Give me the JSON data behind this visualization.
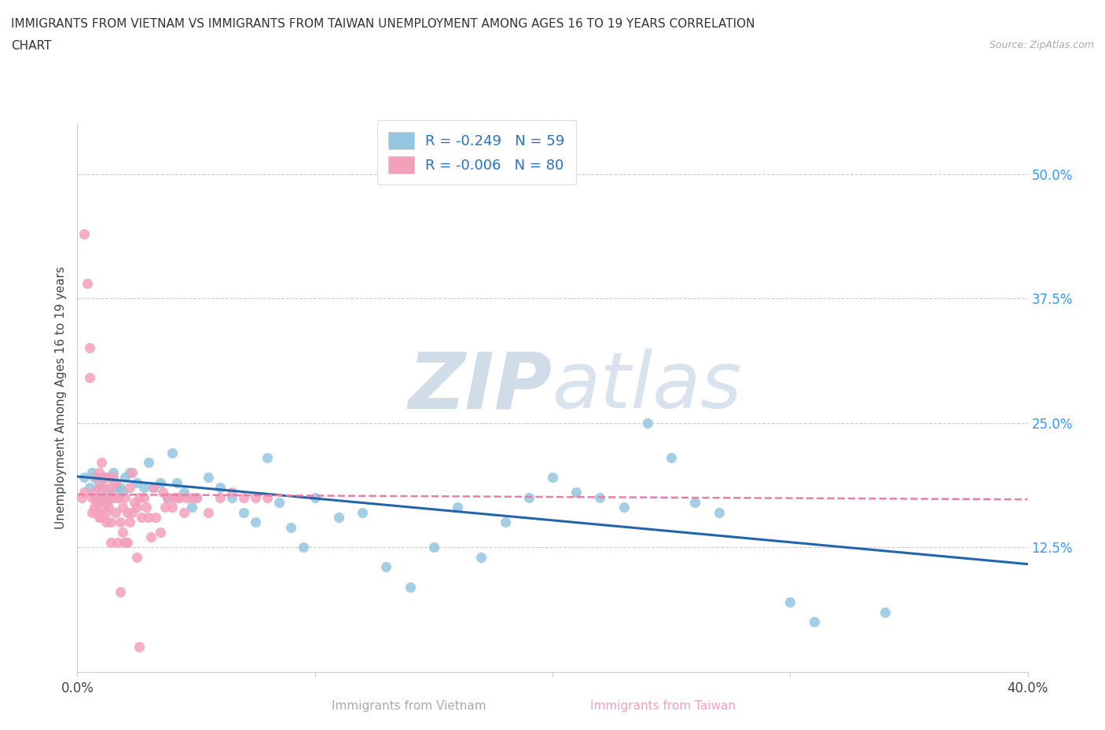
{
  "title_line1": "IMMIGRANTS FROM VIETNAM VS IMMIGRANTS FROM TAIWAN UNEMPLOYMENT AMONG AGES 16 TO 19 YEARS CORRELATION",
  "title_line2": "CHART",
  "source_text": "Source: ZipAtlas.com",
  "ylabel": "Unemployment Among Ages 16 to 19 years",
  "xlabel_vietnam": "Immigrants from Vietnam",
  "xlabel_taiwan": "Immigrants from Taiwan",
  "xlim": [
    0.0,
    0.4
  ],
  "ylim": [
    0.0,
    0.55
  ],
  "xticks": [
    0.0,
    0.1,
    0.2,
    0.3,
    0.4
  ],
  "xticklabels": [
    "0.0%",
    "",
    "",
    "",
    "40.0%"
  ],
  "ytick_positions": [
    0.125,
    0.25,
    0.375,
    0.5
  ],
  "ytick_labels": [
    "12.5%",
    "25.0%",
    "37.5%",
    "50.0%"
  ],
  "legend_vietnam_R": "R = -0.249",
  "legend_vietnam_N": "N = 59",
  "legend_taiwan_R": "R = -0.006",
  "legend_taiwan_N": "N = 80",
  "vietnam_color": "#93c6e0",
  "taiwan_color": "#f4a0bb",
  "trendline_vietnam_color": "#2166ac",
  "trendline_taiwan_color": "#e87fa8",
  "watermark_ZIP": "ZIP",
  "watermark_atlas": "atlas",
  "vietnam_scatter": [
    [
      0.003,
      0.195
    ],
    [
      0.005,
      0.185
    ],
    [
      0.006,
      0.2
    ],
    [
      0.007,
      0.195
    ],
    [
      0.008,
      0.175
    ],
    [
      0.009,
      0.19
    ],
    [
      0.01,
      0.185
    ],
    [
      0.011,
      0.175
    ],
    [
      0.012,
      0.195
    ],
    [
      0.013,
      0.18
    ],
    [
      0.014,
      0.175
    ],
    [
      0.015,
      0.2
    ],
    [
      0.016,
      0.185
    ],
    [
      0.017,
      0.175
    ],
    [
      0.018,
      0.185
    ],
    [
      0.019,
      0.18
    ],
    [
      0.02,
      0.195
    ],
    [
      0.022,
      0.2
    ],
    [
      0.025,
      0.19
    ],
    [
      0.028,
      0.185
    ],
    [
      0.03,
      0.21
    ],
    [
      0.032,
      0.185
    ],
    [
      0.035,
      0.19
    ],
    [
      0.038,
      0.175
    ],
    [
      0.04,
      0.22
    ],
    [
      0.042,
      0.19
    ],
    [
      0.045,
      0.18
    ],
    [
      0.048,
      0.165
    ],
    [
      0.05,
      0.175
    ],
    [
      0.055,
      0.195
    ],
    [
      0.06,
      0.185
    ],
    [
      0.065,
      0.175
    ],
    [
      0.07,
      0.16
    ],
    [
      0.075,
      0.15
    ],
    [
      0.08,
      0.215
    ],
    [
      0.085,
      0.17
    ],
    [
      0.09,
      0.145
    ],
    [
      0.095,
      0.125
    ],
    [
      0.1,
      0.175
    ],
    [
      0.11,
      0.155
    ],
    [
      0.12,
      0.16
    ],
    [
      0.13,
      0.105
    ],
    [
      0.14,
      0.085
    ],
    [
      0.15,
      0.125
    ],
    [
      0.16,
      0.165
    ],
    [
      0.17,
      0.115
    ],
    [
      0.18,
      0.15
    ],
    [
      0.19,
      0.175
    ],
    [
      0.2,
      0.195
    ],
    [
      0.21,
      0.18
    ],
    [
      0.22,
      0.175
    ],
    [
      0.23,
      0.165
    ],
    [
      0.24,
      0.25
    ],
    [
      0.25,
      0.215
    ],
    [
      0.26,
      0.17
    ],
    [
      0.27,
      0.16
    ],
    [
      0.3,
      0.07
    ],
    [
      0.31,
      0.05
    ],
    [
      0.34,
      0.06
    ]
  ],
  "taiwan_scatter": [
    [
      0.002,
      0.175
    ],
    [
      0.003,
      0.18
    ],
    [
      0.003,
      0.44
    ],
    [
      0.004,
      0.39
    ],
    [
      0.005,
      0.325
    ],
    [
      0.005,
      0.295
    ],
    [
      0.006,
      0.175
    ],
    [
      0.006,
      0.16
    ],
    [
      0.007,
      0.18
    ],
    [
      0.007,
      0.165
    ],
    [
      0.007,
      0.175
    ],
    [
      0.008,
      0.195
    ],
    [
      0.008,
      0.17
    ],
    [
      0.008,
      0.16
    ],
    [
      0.009,
      0.155
    ],
    [
      0.009,
      0.2
    ],
    [
      0.009,
      0.185
    ],
    [
      0.01,
      0.165
    ],
    [
      0.01,
      0.155
    ],
    [
      0.01,
      0.21
    ],
    [
      0.011,
      0.195
    ],
    [
      0.011,
      0.175
    ],
    [
      0.011,
      0.185
    ],
    [
      0.012,
      0.16
    ],
    [
      0.012,
      0.17
    ],
    [
      0.012,
      0.15
    ],
    [
      0.013,
      0.195
    ],
    [
      0.013,
      0.175
    ],
    [
      0.013,
      0.165
    ],
    [
      0.014,
      0.185
    ],
    [
      0.014,
      0.15
    ],
    [
      0.014,
      0.13
    ],
    [
      0.015,
      0.195
    ],
    [
      0.015,
      0.175
    ],
    [
      0.016,
      0.16
    ],
    [
      0.016,
      0.19
    ],
    [
      0.017,
      0.175
    ],
    [
      0.017,
      0.13
    ],
    [
      0.018,
      0.15
    ],
    [
      0.018,
      0.08
    ],
    [
      0.019,
      0.165
    ],
    [
      0.019,
      0.14
    ],
    [
      0.02,
      0.175
    ],
    [
      0.02,
      0.13
    ],
    [
      0.021,
      0.16
    ],
    [
      0.021,
      0.13
    ],
    [
      0.022,
      0.185
    ],
    [
      0.022,
      0.15
    ],
    [
      0.023,
      0.16
    ],
    [
      0.023,
      0.2
    ],
    [
      0.024,
      0.17
    ],
    [
      0.025,
      0.115
    ],
    [
      0.025,
      0.165
    ],
    [
      0.026,
      0.175
    ],
    [
      0.026,
      0.025
    ],
    [
      0.027,
      0.155
    ],
    [
      0.028,
      0.175
    ],
    [
      0.029,
      0.165
    ],
    [
      0.03,
      0.155
    ],
    [
      0.031,
      0.135
    ],
    [
      0.032,
      0.185
    ],
    [
      0.033,
      0.155
    ],
    [
      0.035,
      0.14
    ],
    [
      0.036,
      0.18
    ],
    [
      0.037,
      0.165
    ],
    [
      0.038,
      0.175
    ],
    [
      0.04,
      0.165
    ],
    [
      0.041,
      0.175
    ],
    [
      0.042,
      0.175
    ],
    [
      0.043,
      0.175
    ],
    [
      0.045,
      0.16
    ],
    [
      0.046,
      0.175
    ],
    [
      0.048,
      0.175
    ],
    [
      0.05,
      0.175
    ],
    [
      0.055,
      0.16
    ],
    [
      0.06,
      0.175
    ],
    [
      0.065,
      0.18
    ],
    [
      0.07,
      0.175
    ],
    [
      0.075,
      0.175
    ],
    [
      0.08,
      0.175
    ]
  ]
}
